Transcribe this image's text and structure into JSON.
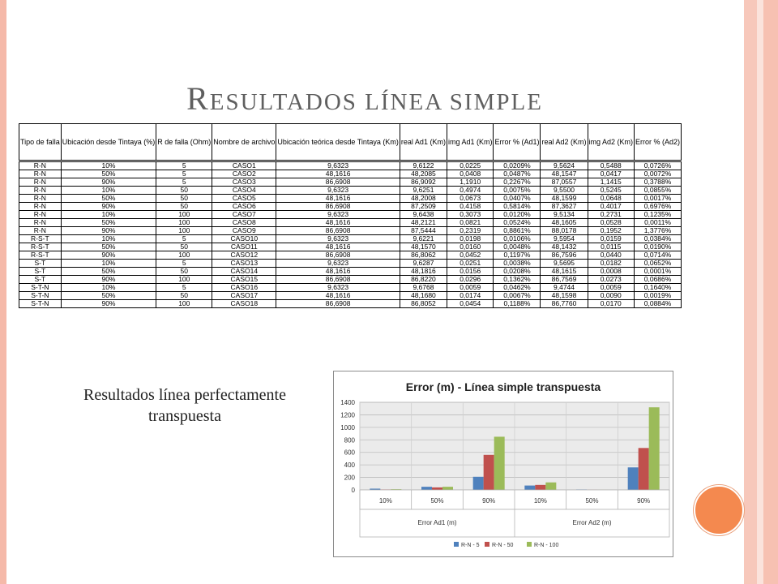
{
  "slide": {
    "title_first": "R",
    "title_rest": "esultados línea simple",
    "caption_line1": "Resultados línea perfectamente",
    "caption_line2": "transpuesta"
  },
  "colors": {
    "frame_left": "#f5b9a9",
    "frame_right": "#f7c1b2",
    "circle": "#f4894f",
    "series_blue": "#4f81bd",
    "series_red": "#c0504d",
    "series_green": "#9bbb59"
  },
  "table": {
    "headers": [
      "Tipo de falla",
      "Ubicación desde Tintaya (%)",
      "R de falla (Ohm)",
      "Nombre de archivo",
      "Ubicación teórica desde Tintaya (Km)",
      "real Ad1 (Km)",
      "img Ad1 (Km)",
      "Error % (Ad1)",
      "real Ad2 (Km)",
      "img Ad2 (Km)",
      "Error % (Ad2)"
    ],
    "rows": [
      [
        "R-N",
        "10%",
        "5",
        "CASO1",
        "9,6323",
        "9,6122",
        "0,0225",
        "0,0209%",
        "9,5624",
        "0,5488",
        "0,0726%"
      ],
      [
        "R-N",
        "50%",
        "5",
        "CASO2",
        "48,1616",
        "48,2085",
        "0,0408",
        "0,0487%",
        "48,1547",
        "0,0417",
        "0,0072%"
      ],
      [
        "R-N",
        "90%",
        "5",
        "CASO3",
        "86,6908",
        "86,9092",
        "1,1910",
        "0,2267%",
        "87,0557",
        "1,1415",
        "0,3788%"
      ],
      [
        "R-N",
        "10%",
        "50",
        "CASO4",
        "9,6323",
        "9,6251",
        "0,4974",
        "0,0075%",
        "9,5500",
        "0,5245",
        "0,0855%"
      ],
      [
        "R-N",
        "50%",
        "50",
        "CASO5",
        "48,1616",
        "48,2008",
        "0,0673",
        "0,0407%",
        "48,1599",
        "0,0648",
        "0,0017%"
      ],
      [
        "R-N",
        "90%",
        "50",
        "CASO6",
        "86,6908",
        "87,2509",
        "0,4158",
        "0,5814%",
        "87,3627",
        "0,4017",
        "0,6976%"
      ],
      [
        "R-N",
        "10%",
        "100",
        "CASO7",
        "9,6323",
        "9,6438",
        "0,3073",
        "0,0120%",
        "9,5134",
        "0,2731",
        "0,1235%"
      ],
      [
        "R-N",
        "50%",
        "100",
        "CASO8",
        "48,1616",
        "48,2121",
        "0,0821",
        "0,0524%",
        "48,1605",
        "0,0528",
        "0,0011%"
      ],
      [
        "R-N",
        "90%",
        "100",
        "CASO9",
        "86,6908",
        "87,5444",
        "0,2319",
        "0,8861%",
        "88,0178",
        "0,1952",
        "1,3776%"
      ],
      [
        "R-S-T",
        "10%",
        "5",
        "CASO10",
        "9,6323",
        "9,6221",
        "0,0198",
        "0,0106%",
        "9,5954",
        "0,0159",
        "0,0384%"
      ],
      [
        "R-S-T",
        "50%",
        "50",
        "CASO11",
        "48,1616",
        "48,1570",
        "0,0160",
        "0,0048%",
        "48,1432",
        "0,0115",
        "0,0190%"
      ],
      [
        "R-S-T",
        "90%",
        "100",
        "CASO12",
        "86,6908",
        "86,8062",
        "0,0452",
        "0,1197%",
        "86,7596",
        "0,0440",
        "0,0714%"
      ],
      [
        "S-T",
        "10%",
        "5",
        "CASO13",
        "9,6323",
        "9,6287",
        "0,0251",
        "0,0038%",
        "9,5695",
        "0,0182",
        "0,0652%"
      ],
      [
        "S-T",
        "50%",
        "50",
        "CASO14",
        "48,1616",
        "48,1816",
        "0,0156",
        "0,0208%",
        "48,1615",
        "0,0008",
        "0,0001%"
      ],
      [
        "S-T",
        "90%",
        "100",
        "CASO15",
        "86,6908",
        "86,8220",
        "0,0296",
        "0,1362%",
        "86,7569",
        "0,0273",
        "0,0686%"
      ],
      [
        "S-T-N",
        "10%",
        "5",
        "CASO16",
        "9,6323",
        "9,6768",
        "0,0059",
        "0,0462%",
        "9,4744",
        "0,0059",
        "0,1640%"
      ],
      [
        "S-T-N",
        "50%",
        "50",
        "CASO17",
        "48,1616",
        "48,1680",
        "0,0174",
        "0,0067%",
        "48,1598",
        "0,0090",
        "0,0019%"
      ],
      [
        "S-T-N",
        "90%",
        "100",
        "CASO18",
        "86,6908",
        "86,8052",
        "0,0454",
        "0,1188%",
        "86,7760",
        "0,0170",
        "0,0884%"
      ]
    ]
  },
  "chart_data": {
    "type": "bar",
    "title": "Error (m) - Línea simple transpuesta",
    "categories": [
      "10%",
      "50%",
      "90%",
      "10%",
      "50%",
      "90%"
    ],
    "groups": [
      "Error Ad1 (m)",
      "Error  Ad2 (m)"
    ],
    "ylim": [
      0,
      1400
    ],
    "yticks": [
      "0",
      "200",
      "400",
      "600",
      "800",
      "1000",
      "1200",
      "1400"
    ],
    "grid": true,
    "legend_position": "bottom",
    "series": [
      {
        "name": "R-N - 5",
        "color": "#4f81bd",
        "values": [
          20,
          50,
          210,
          70,
          7,
          360
        ]
      },
      {
        "name": "R-N - 50",
        "color": "#c0504d",
        "values": [
          7,
          40,
          560,
          80,
          2,
          670
        ]
      },
      {
        "name": "R-N - 100",
        "color": "#9bbb59",
        "values": [
          11,
          50,
          850,
          120,
          1,
          1320
        ]
      }
    ]
  }
}
